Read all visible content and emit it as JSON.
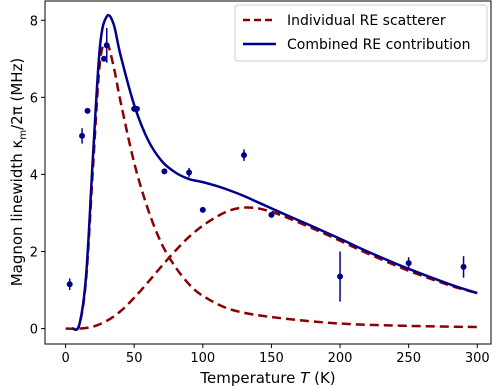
{
  "chart_data": {
    "type": "line",
    "xlabel_text": "Temperature ",
    "xlabel_symbol": "T",
    "xlabel_unit": " (K)",
    "ylabel_text": "Magnon linewidth κ",
    "ylabel_sub": "m",
    "ylabel_rest": "/2π (MHz)",
    "xlim": [
      -15,
      310
    ],
    "ylim": [
      -0.4,
      8.5
    ],
    "x_ticks": [
      0,
      50,
      100,
      150,
      200,
      250,
      300
    ],
    "y_ticks": [
      0,
      2,
      4,
      6,
      8
    ],
    "legend_position": "top-right",
    "grid": false,
    "series": [
      {
        "name": "Individual RE scatterer",
        "style": "dashed",
        "color": "#8b0000",
        "x": [
          5,
          10,
          15,
          20,
          25,
          30,
          35,
          40,
          50,
          60,
          70,
          80,
          90,
          100,
          120,
          150,
          200,
          250,
          300
        ],
        "y": [
          0.0,
          0.1,
          1.3,
          4.2,
          6.9,
          7.4,
          6.8,
          5.9,
          4.3,
          3.1,
          2.2,
          1.6,
          1.15,
          0.85,
          0.5,
          0.3,
          0.13,
          0.07,
          0.04
        ]
      },
      {
        "name": "",
        "style": "dashed",
        "color": "#8b0000",
        "x": [
          0,
          10,
          20,
          30,
          40,
          50,
          60,
          70,
          80,
          90,
          100,
          110,
          120,
          130,
          140,
          150,
          160,
          180,
          200,
          220,
          250,
          280,
          300
        ],
        "y": [
          0.0,
          0.0,
          0.05,
          0.2,
          0.45,
          0.8,
          1.2,
          1.62,
          2.02,
          2.38,
          2.67,
          2.9,
          3.07,
          3.14,
          3.12,
          3.03,
          2.9,
          2.6,
          2.28,
          1.95,
          1.5,
          1.12,
          0.92
        ]
      },
      {
        "name": "Combined RE contribution",
        "style": "solid",
        "color": "#00008b",
        "x": [
          5,
          10,
          15,
          20,
          25,
          30,
          35,
          40,
          50,
          60,
          70,
          80,
          90,
          100,
          110,
          120,
          130,
          140,
          150,
          160,
          180,
          200,
          220,
          250,
          280,
          300
        ],
        "y": [
          0.0,
          0.1,
          1.4,
          4.5,
          7.3,
          8.1,
          7.9,
          7.1,
          5.8,
          4.9,
          4.35,
          4.05,
          3.88,
          3.8,
          3.7,
          3.58,
          3.44,
          3.28,
          3.12,
          2.96,
          2.65,
          2.33,
          2.0,
          1.55,
          1.15,
          0.92
        ]
      }
    ],
    "points": {
      "name": "",
      "color": "#00008b",
      "x": [
        3,
        12,
        16,
        28,
        30,
        52,
        50,
        72,
        90,
        100,
        130,
        150,
        200,
        250,
        290
      ],
      "y": [
        1.15,
        5.0,
        5.65,
        7.0,
        7.35,
        5.7,
        5.7,
        4.08,
        4.05,
        3.08,
        4.5,
        2.95,
        1.35,
        1.7,
        1.6
      ],
      "err": [
        0.15,
        0.2,
        0.0,
        0.0,
        0.45,
        0.0,
        0.0,
        0.0,
        0.12,
        0.0,
        0.15,
        0.0,
        0.65,
        0.15,
        0.28
      ]
    }
  }
}
